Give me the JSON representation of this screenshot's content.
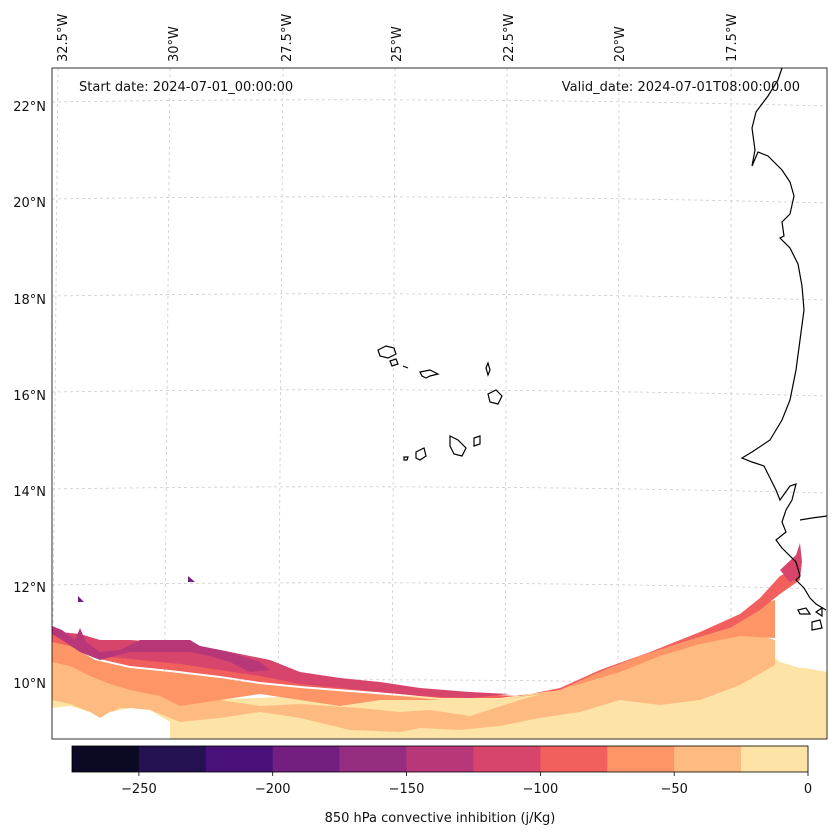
{
  "map": {
    "annotations": {
      "start": "Start date: 2024-07-01_00:00:00",
      "valid": "Valid_date: 2024-07-01T08:00:00.00"
    },
    "lon_labels": [
      "32.5°W",
      "30°W",
      "27.5°W",
      "25°W",
      "22.5°W",
      "20°W",
      "17.5°W"
    ],
    "lat_labels": [
      "22°N",
      "20°N",
      "18°N",
      "16°N",
      "14°N",
      "12°N",
      "10°N"
    ],
    "colorbar": {
      "label": "850 hPa convective inhibition (j/Kg)",
      "ticks": [
        "−250",
        "−200",
        "−150",
        "−100",
        "−50",
        "0"
      ],
      "levels": [
        -275,
        -250,
        -225,
        -200,
        -175,
        -150,
        -125,
        -100,
        -75,
        -50,
        -25,
        0
      ],
      "colors": [
        "#0b0924",
        "#231151",
        "#4a1079",
        "#721f81",
        "#962c80",
        "#b73779",
        "#d8456c",
        "#f1605d",
        "#fd9567",
        "#febb81",
        "#fde4a6"
      ]
    }
  }
}
